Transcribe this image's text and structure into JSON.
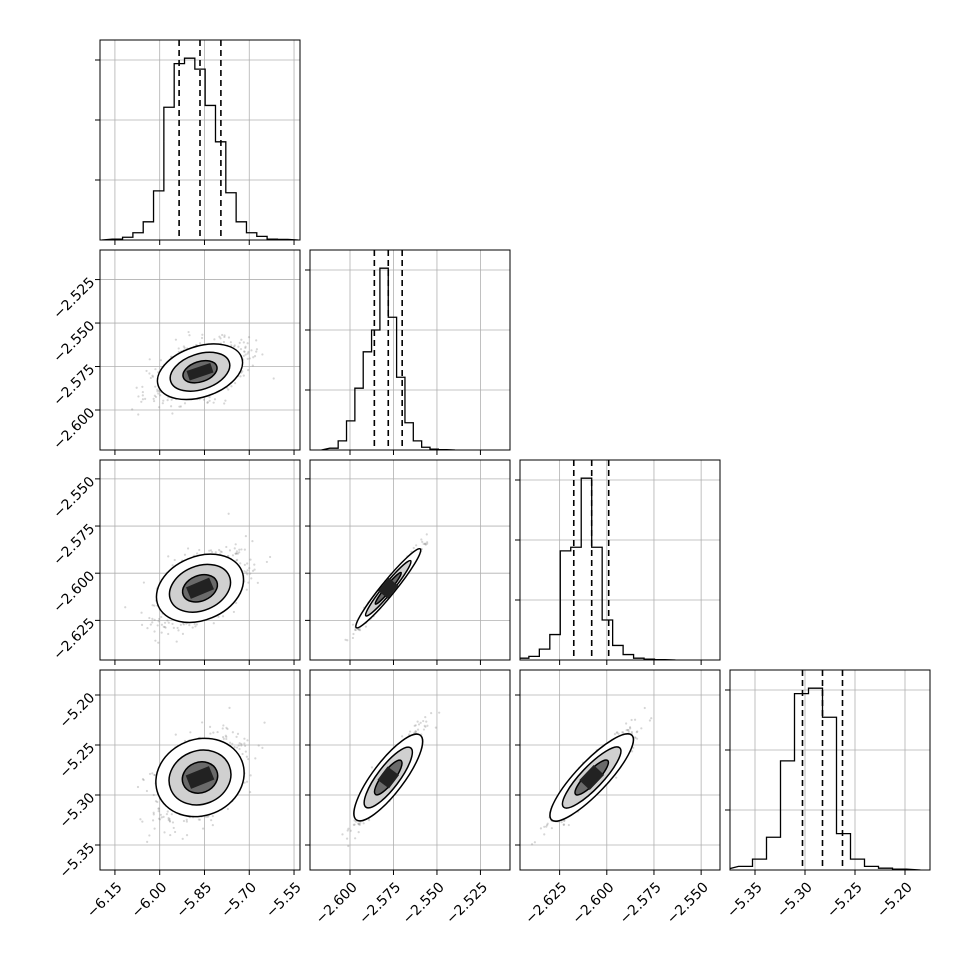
{
  "chart_data": {
    "type": "corner",
    "params": [
      {
        "range": [
          -6.2,
          -5.53
        ],
        "ticks": [
          -6.15,
          -6.0,
          -5.85,
          -5.7,
          -5.55
        ],
        "tick_labels": [
          "−6.15",
          "−6.00",
          "−5.85",
          "−5.70",
          "−5.55"
        ]
      },
      {
        "range": [
          -2.623,
          -2.508
        ],
        "ticks": [
          -2.6,
          -2.575,
          -2.55,
          -2.525
        ],
        "tick_labels": [
          "−2.600",
          "−2.575",
          "−2.550",
          "−2.525"
        ]
      },
      {
        "range": [
          -2.646,
          -2.54
        ],
        "ticks": [
          -2.625,
          -2.6,
          -2.575,
          -2.55
        ],
        "tick_labels": [
          "−2.625",
          "−2.600",
          "−2.575",
          "−2.550"
        ]
      },
      {
        "range": [
          -5.375,
          -5.175
        ],
        "ticks": [
          -5.35,
          -5.3,
          -5.25,
          -5.2
        ],
        "tick_labels": [
          "−5.35",
          "−5.30",
          "−5.25",
          "−5.20"
        ]
      }
    ],
    "quantiles": [
      [
        -5.935,
        -5.865,
        -5.795
      ],
      [
        -2.586,
        -2.578,
        -2.57
      ],
      [
        -2.6175,
        -2.608,
        -2.599
      ],
      [
        -5.3025,
        -5.2825,
        -5.2625
      ]
    ],
    "histograms": [
      [
        0.005,
        0.015,
        0.04,
        0.1,
        0.27,
        0.73,
        0.97,
        1.0,
        0.94,
        0.74,
        0.54,
        0.26,
        0.1,
        0.04,
        0.02,
        0.005,
        0.003
      ],
      [
        0.01,
        0.05,
        0.16,
        0.34,
        0.54,
        0.66,
        1.0,
        0.73,
        0.4,
        0.15,
        0.05,
        0.015,
        0.005,
        0.002
      ],
      [
        0.01,
        0.02,
        0.06,
        0.14,
        0.6,
        0.62,
        1.0,
        0.62,
        0.22,
        0.08,
        0.03,
        0.01,
        0.005,
        0.002
      ],
      [
        0.02,
        0.06,
        0.18,
        0.6,
        0.97,
        1.0,
        0.84,
        0.2,
        0.06,
        0.02,
        0.01,
        0.005
      ]
    ],
    "correlation": [
      [
        1.0,
        0.5,
        0.5,
        0.42
      ],
      [
        0.5,
        1.0,
        0.98,
        0.92
      ],
      [
        0.5,
        0.98,
        1.0,
        0.92
      ],
      [
        0.42,
        0.92,
        0.92,
        1.0
      ]
    ],
    "grid": true,
    "colors": {
      "line": "#000000",
      "grid": "#b0b0b0",
      "points": "#8a8a8a",
      "fill": "#ffffff"
    }
  }
}
